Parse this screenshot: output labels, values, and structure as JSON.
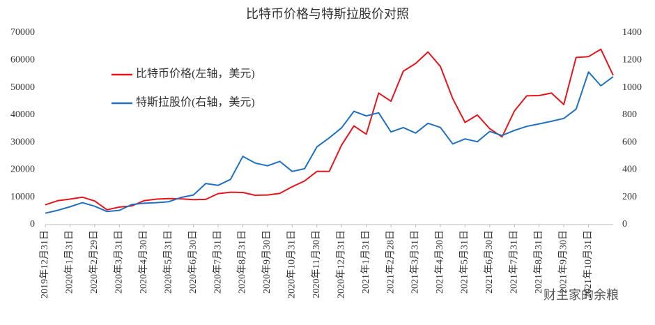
{
  "chart_data": {
    "type": "line",
    "title": "比特币价格与特斯拉股价对照",
    "categories": [
      "2019年12月31日",
      null,
      "2020年1月31日",
      null,
      "2020年2月29日",
      null,
      "2020年3月31日",
      null,
      "2020年4月30日",
      null,
      "2020年5月31日",
      null,
      "2020年6月30日",
      null,
      "2020年7月31日",
      null,
      "2020年8月31日",
      null,
      "2020年9月30日",
      null,
      "2020年10月31日",
      null,
      "2020年11月30日",
      null,
      "2020年12月31日",
      null,
      "2021年1月31日",
      null,
      "2021年2月28日",
      null,
      "2021年3月31日",
      null,
      "2021年4月30日",
      null,
      "2021年5月31日",
      null,
      "2021年6月30日",
      null,
      "2021年7月31日",
      null,
      "2021年8月31日",
      null,
      "2021年9月30日",
      null,
      "2021年10月31日",
      null,
      null
    ],
    "series": [
      {
        "name": "比特币价格(左轴，美元)",
        "color": "#e8141c",
        "axis": "y",
        "values": [
          7200,
          8700,
          9300,
          10000,
          8600,
          5400,
          6400,
          6800,
          8700,
          9300,
          9500,
          9400,
          9100,
          9200,
          11300,
          11800,
          11700,
          10700,
          10800,
          11400,
          13800,
          15900,
          19400,
          19400,
          29000,
          36000,
          33000,
          48000,
          45000,
          56000,
          58800,
          63000,
          57700,
          46000,
          37300,
          40000,
          35000,
          32000,
          41500,
          47000,
          47100,
          48000,
          43800,
          61000,
          61300,
          64000,
          54500
        ]
      },
      {
        "name": "特斯拉股价(右轴，美元)",
        "color": "#1f70c1",
        "axis": "y2",
        "values": [
          83,
          104,
          130,
          160,
          134,
          95,
          104,
          146,
          156,
          160,
          167,
          198,
          216,
          300,
          286,
          330,
          498,
          449,
          429,
          461,
          388,
          408,
          567,
          633,
          706,
          827,
          793,
          816,
          676,
          708,
          668,
          739,
          709,
          589,
          625,
          605,
          680,
          650,
          688,
          717,
          735,
          754,
          775,
          843,
          1114,
          1013,
          1080
        ]
      }
    ],
    "ylim": [
      0,
      70000
    ],
    "yticks": [
      0,
      10000,
      20000,
      30000,
      40000,
      50000,
      60000,
      70000
    ],
    "y2lim": [
      0,
      1400
    ],
    "y2ticks": [
      0,
      200,
      400,
      600,
      800,
      1000,
      1200,
      1400
    ],
    "grid": false,
    "watermark": "财主家的余粮"
  }
}
